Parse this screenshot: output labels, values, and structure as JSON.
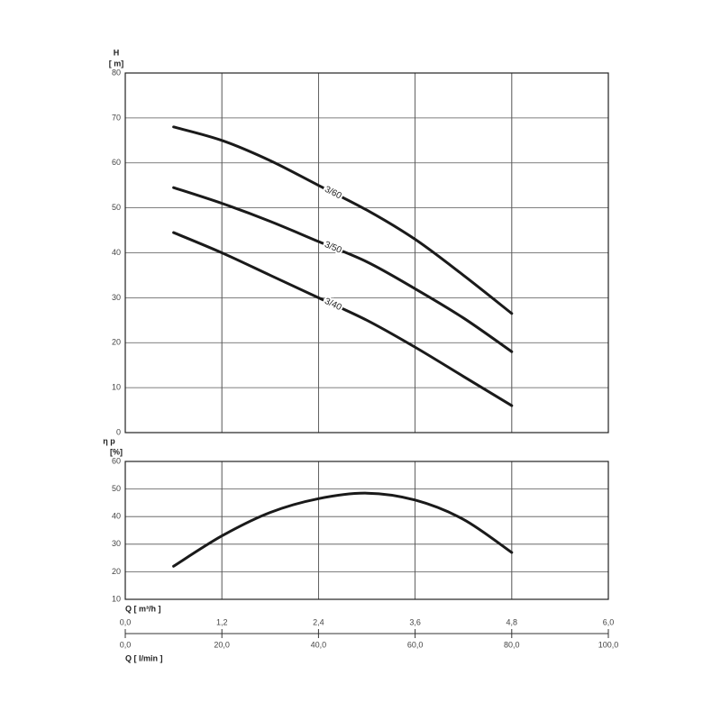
{
  "chart_data": [
    {
      "type": "line",
      "ylabel_symbol": "H",
      "ylabel_unit": "[ m]",
      "x": [
        0.6,
        1.2,
        1.8,
        2.4,
        3.0,
        3.6,
        4.2,
        4.8
      ],
      "series": [
        {
          "name": "3/60",
          "color": "#1a1a1a",
          "values": [
            68,
            65,
            60.5,
            55,
            49.5,
            43,
            35,
            26.5
          ]
        },
        {
          "name": "3/50",
          "color": "#1a1a1a",
          "values": [
            54.5,
            51,
            47,
            42.5,
            38,
            32,
            25.5,
            18
          ]
        },
        {
          "name": "3/40",
          "color": "#1a1a1a",
          "values": [
            44.5,
            40,
            35,
            30,
            25,
            19,
            12.5,
            6
          ]
        }
      ],
      "xlim": [
        0,
        6
      ],
      "ylim": [
        0,
        80
      ],
      "yticks": [
        0,
        10,
        20,
        30,
        40,
        50,
        60,
        70,
        80
      ],
      "grid": true
    },
    {
      "type": "line",
      "ylabel_symbol": "η p",
      "ylabel_unit": "[%]",
      "x": [
        0.6,
        1.2,
        1.8,
        2.4,
        3.0,
        3.6,
        4.2,
        4.8
      ],
      "series": [
        {
          "color": "#1a1a1a",
          "values": [
            22,
            33,
            41.5,
            46.5,
            48.5,
            46,
            39,
            27
          ]
        }
      ],
      "xlim": [
        0,
        6
      ],
      "ylim": [
        10,
        60
      ],
      "yticks": [
        10,
        20,
        30,
        40,
        50,
        60
      ],
      "grid": true,
      "xlabel": "Q [ m³/h ]",
      "xticks": [
        {
          "value": 0,
          "label": "0,0"
        },
        {
          "value": 1.2,
          "label": "1,2"
        },
        {
          "value": 2.4,
          "label": "2,4"
        },
        {
          "value": 3.6,
          "label": "3,6"
        },
        {
          "value": 4.8,
          "label": "4,8"
        },
        {
          "value": 6,
          "label": "6,0"
        }
      ],
      "x2label": "Q [ l/min ]",
      "x2lim": [
        0,
        100
      ],
      "x2ticks": [
        {
          "value": 0,
          "label": "0,0"
        },
        {
          "value": 20,
          "label": "20,0"
        },
        {
          "value": 40,
          "label": "40,0"
        },
        {
          "value": 60,
          "label": "60,0"
        },
        {
          "value": 80,
          "label": "80,0"
        },
        {
          "value": 100,
          "label": "100,0"
        }
      ]
    }
  ]
}
